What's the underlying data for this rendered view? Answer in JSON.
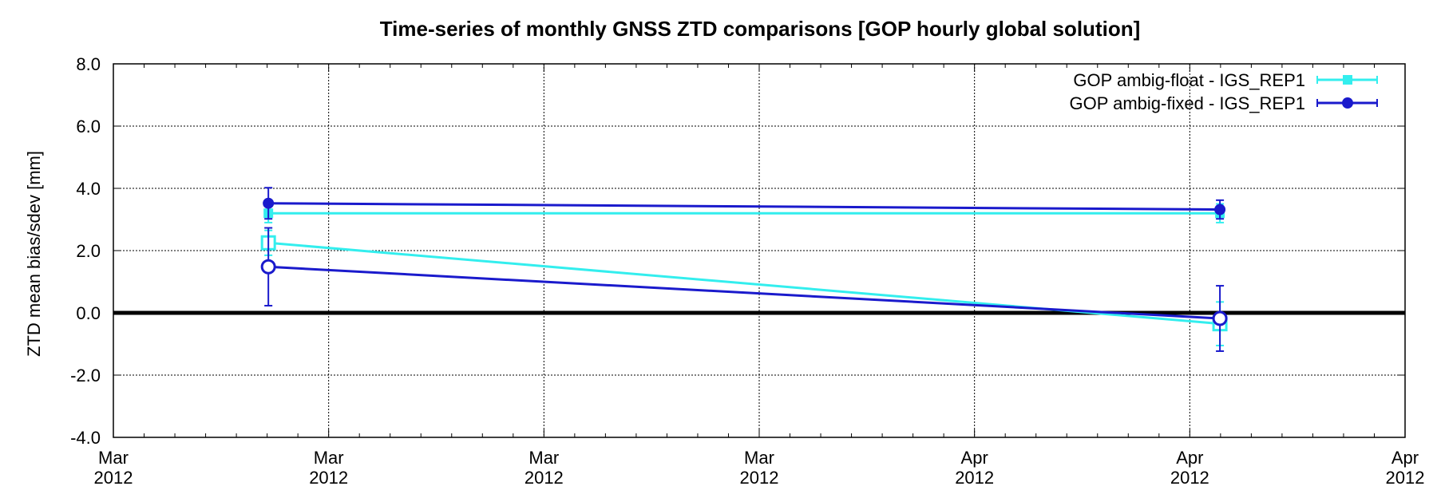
{
  "chart_data": {
    "type": "line",
    "title": "Time-series of monthly GNSS ZTD comparisons [GOP hourly global solution]",
    "ylabel": "ZTD mean bias/sdev [mm]",
    "xlabel": "",
    "ylim": [
      -4.0,
      8.0
    ],
    "yticks": [
      "-4.0",
      "-2.0",
      "0.0",
      "2.0",
      "4.0",
      "6.0",
      "8.0"
    ],
    "x_ticks": [
      {
        "l1": "Mar",
        "l2": "2012",
        "x": 0
      },
      {
        "l1": "Mar",
        "l2": "2012",
        "x": 1
      },
      {
        "l1": "Mar",
        "l2": "2012",
        "x": 2
      },
      {
        "l1": "Mar",
        "l2": "2012",
        "x": 3
      },
      {
        "l1": "Apr",
        "l2": "2012",
        "x": 4
      },
      {
        "l1": "Apr",
        "l2": "2012",
        "x": 5
      },
      {
        "l1": "Apr",
        "l2": "2012",
        "x": 6
      }
    ],
    "xlim": [
      0,
      6
    ],
    "grid": true,
    "zero_line": 0.0,
    "legend_position": "top-right",
    "series": [
      {
        "name": "GOP ambig-float - IGS_REP1",
        "color": "#33eeee",
        "bias": [
          {
            "x": 0.72,
            "y": 2.25
          },
          {
            "x": 5.14,
            "y": -0.35
          }
        ],
        "sdev": [
          {
            "x": 0.72,
            "y": 3.2
          },
          {
            "x": 5.14,
            "y": 3.2
          }
        ],
        "sdev_err": [
          0.3,
          0.3
        ],
        "bias_err": [
          0.4,
          0.7
        ]
      },
      {
        "name": "GOP ambig-fixed - IGS_REP1",
        "color": "#1a1acc",
        "bias": [
          {
            "x": 0.72,
            "y": 1.48
          },
          {
            "x": 5.14,
            "y": -0.18
          }
        ],
        "sdev": [
          {
            "x": 0.72,
            "y": 3.52
          },
          {
            "x": 5.14,
            "y": 3.32
          }
        ],
        "sdev_err": [
          0.5,
          0.3
        ],
        "bias_err": [
          1.25,
          1.05
        ]
      }
    ]
  }
}
